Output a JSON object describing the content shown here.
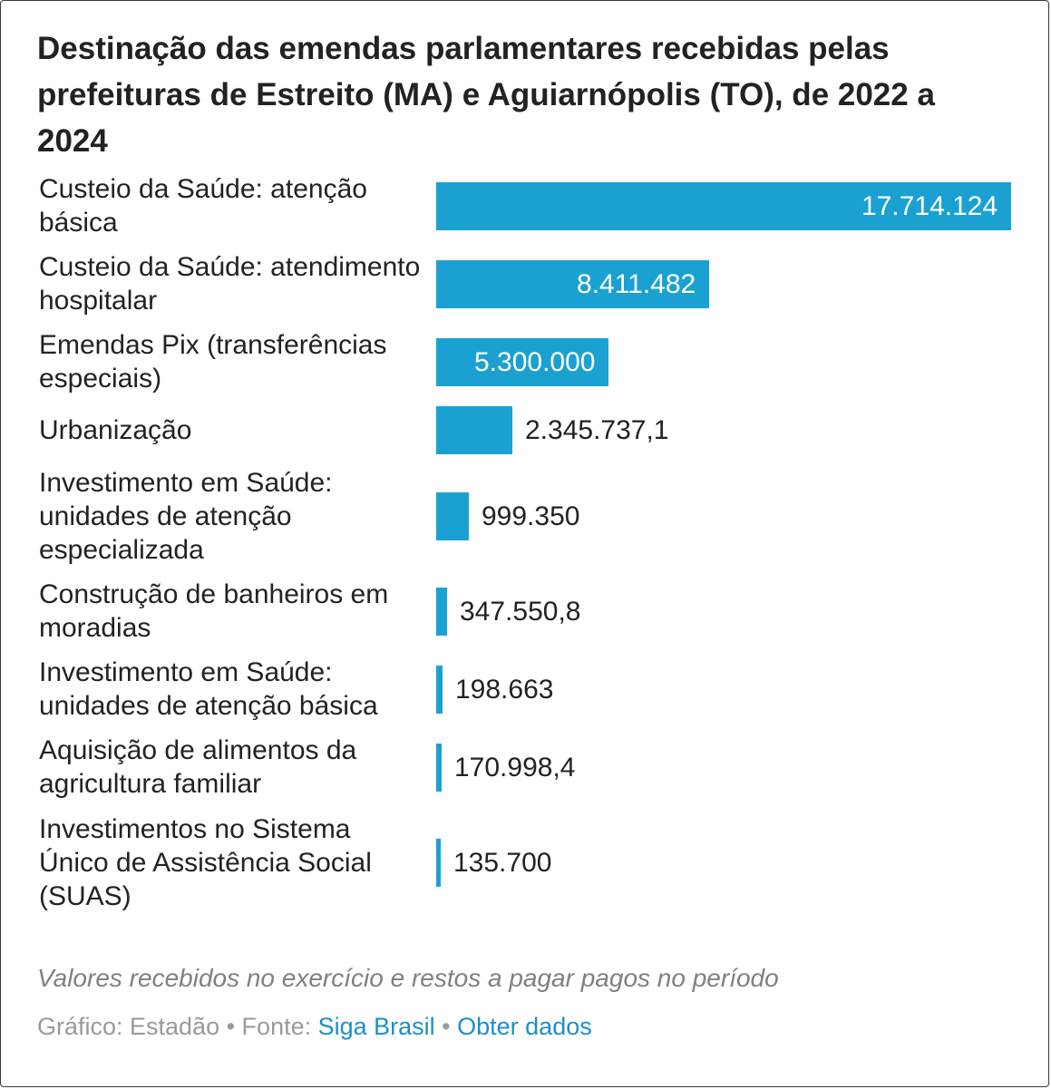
{
  "title": "Destinação das emendas parlamentares recebidas pelas prefeituras de Estreito (MA) e Aguiarnópolis (TO), de 2022 a 2024",
  "colors": {
    "bar": "#1ba1d1",
    "inside_label": "#ffffff",
    "outside_label": "#222222",
    "link": "#1b8fc9"
  },
  "chart_data": {
    "type": "bar",
    "orientation": "horizontal",
    "title": "Destinação das emendas parlamentares recebidas pelas prefeituras de Estreito (MA) e Aguiarnópolis (TO), de 2022 a 2024",
    "categories": [
      "Custeio da Saúde: atenção básica",
      "Custeio da Saúde: atendimento hospitalar",
      "Emendas Pix (transferências especiais)",
      "Urbanização",
      "Investimento em Saúde: unidades de atenção especializada",
      "Construção de banheiros em moradias",
      "Investimento em Saúde: unidades de atenção básica",
      "Aquisição de alimentos da agricultura familiar",
      "Investimentos no Sistema Único de Assistência Social (SUAS)"
    ],
    "values": [
      17714124,
      8411482,
      5300000,
      2345737.1,
      999350,
      347550.8,
      198663,
      170998.4,
      135700
    ],
    "value_labels": [
      "17.714.124",
      "8.411.482",
      "5.300.000",
      "2.345.737,1",
      "999.350",
      "347.550,8",
      "198.663",
      "170.998,4",
      "135.700"
    ],
    "xlim": [
      0,
      17714124
    ],
    "grid": false,
    "legend": "none"
  },
  "note": "Valores recebidos no exercício e restos a pagar pagos no período",
  "credits": {
    "prefix": "Gráfico: Estadão • Fonte: ",
    "source_link": "Siga Brasil",
    "separator": " • ",
    "data_link": "Obter dados"
  }
}
